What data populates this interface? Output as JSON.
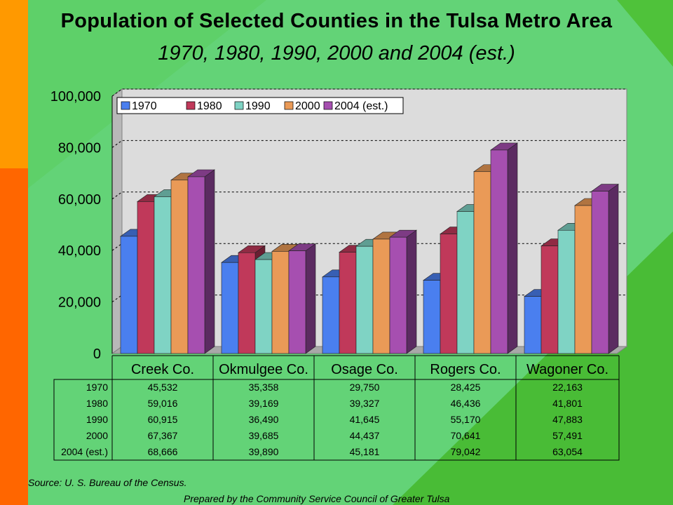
{
  "title": "Population of Selected Counties in the Tulsa Metro Area",
  "subtitle": "1970, 1980, 1990, 2000 and 2004 (est.)",
  "source": "Source:  U. S. Bureau of the Census.",
  "prepared_by": "Prepared by the Community Service Council of Greater Tulsa",
  "colors": {
    "background": "#4fc23a",
    "stripe_top": "#ff9900",
    "stripe_bottom": "#ff6600",
    "plot_area": "#dcdcdc"
  },
  "chart_data": {
    "type": "bar",
    "style": "3d-clustered-column",
    "title": "Population of Selected Counties in the Tulsa Metro Area",
    "subtitle": "1970, 1980, 1990, 2000 and 2004 (est.)",
    "categories": [
      "Creek Co.",
      "Okmulgee Co.",
      "Osage Co.",
      "Rogers Co.",
      "Wagoner Co."
    ],
    "series": [
      {
        "name": "1970",
        "color": "#4a7fef",
        "values": [
          45532,
          35358,
          29750,
          28425,
          22163
        ]
      },
      {
        "name": "1980",
        "color": "#c0395a",
        "values": [
          59016,
          39169,
          39327,
          46436,
          41801
        ]
      },
      {
        "name": "1990",
        "color": "#7fd3c4",
        "values": [
          60915,
          36490,
          41645,
          55170,
          47883
        ]
      },
      {
        "name": "2000",
        "color": "#ea9a57",
        "values": [
          67367,
          39685,
          44437,
          70641,
          57491
        ]
      },
      {
        "name": "2004 (est.)",
        "color": "#a64fb0",
        "values": [
          68666,
          39890,
          45181,
          79042,
          63054
        ]
      }
    ],
    "value_labels": [
      [
        "45,532",
        "35,358",
        "29,750",
        "28,425",
        "22,163"
      ],
      [
        "59,016",
        "39,169",
        "39,327",
        "46,436",
        "41,801"
      ],
      [
        "60,915",
        "36,490",
        "41,645",
        "55,170",
        "47,883"
      ],
      [
        "67,367",
        "39,685",
        "44,437",
        "70,641",
        "57,491"
      ],
      [
        "68,666",
        "39,890",
        "45,181",
        "79,042",
        "63,054"
      ]
    ],
    "y_ticks": [
      "0",
      "20,000",
      "40,000",
      "60,000",
      "80,000",
      "100,000"
    ],
    "ylim": [
      0,
      100000
    ],
    "grid": true,
    "legend_position": "top-left",
    "data_table": true
  }
}
